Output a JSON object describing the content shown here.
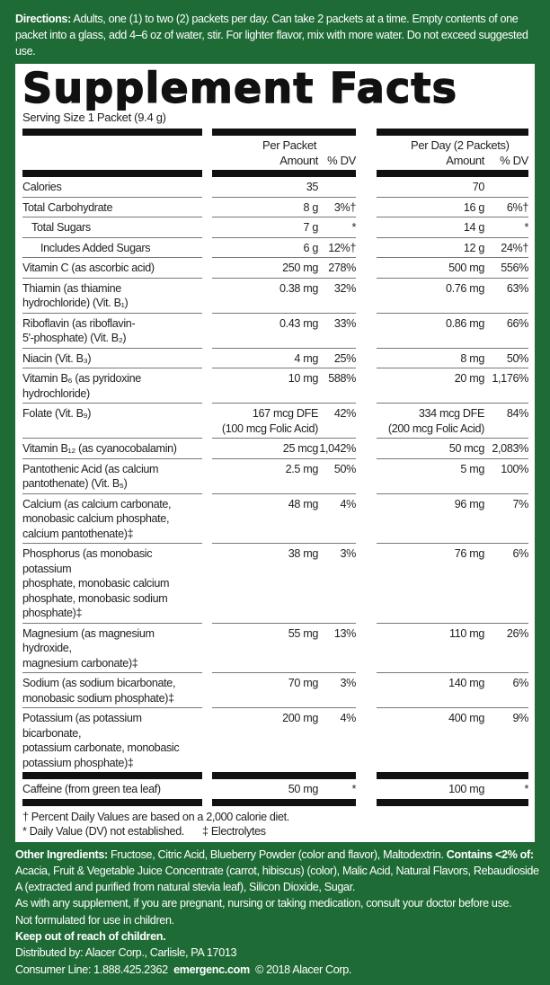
{
  "directions": {
    "label": "Directions:",
    "text": " Adults, one (1) to two (2) packets per day. Can take 2 packets at a time. Empty contents of one packet into a glass, add 4–6 oz of water, stir. For lighter flavor, mix with more water. Do not exceed suggested use."
  },
  "title": "Supplement Facts",
  "serving_size": "Serving Size 1 Packet (9.4 g)",
  "headers": {
    "per_packet": "Per Packet",
    "per_day": "Per Day (2 Packets)",
    "amount": "Amount",
    "dv": "% DV"
  },
  "rows": [
    {
      "name": "Calories",
      "a1": "35",
      "d1": "",
      "a2": "70",
      "d2": ""
    },
    {
      "name": "Total Carbohydrate",
      "a1": "8 g",
      "d1": "3%†",
      "a2": "16 g",
      "d2": "6%†"
    },
    {
      "name": "Total Sugars",
      "a1": "7 g",
      "d1": "*",
      "a2": "14 g",
      "d2": "*",
      "indent": 1
    },
    {
      "name": "Includes Added Sugars",
      "a1": "6 g",
      "d1": "12%†",
      "a2": "12 g",
      "d2": "24%†",
      "indent": 2
    },
    {
      "name": "Vitamin C (as ascorbic acid)",
      "a1": "250 mg",
      "d1": "278%",
      "a2": "500 mg",
      "d2": "556%"
    },
    {
      "name": "Thiamin (as thiamine\nhydrochloride) (Vit. B₁)",
      "a1": "0.38 mg",
      "d1": "32%",
      "a2": "0.76 mg",
      "d2": "63%"
    },
    {
      "name": "Riboflavin (as riboflavin-\n   5'-phosphate) (Vit. B₂)",
      "a1": "0.43 mg",
      "d1": "33%",
      "a2": "0.86 mg",
      "d2": "66%"
    },
    {
      "name": "Niacin (Vit. B₃)",
      "a1": "4 mg",
      "d1": "25%",
      "a2": "8 mg",
      "d2": "50%"
    },
    {
      "name": "Vitamin B₆ (as pyridoxine\nhydrochloride)",
      "a1": "10 mg",
      "d1": "588%",
      "a2": "20 mg",
      "d2": "1,176%"
    },
    {
      "name": "Folate (Vit. B₉)",
      "a1": "167 mcg DFE\n(100 mcg Folic Acid)",
      "d1": "42%",
      "a2": "334 mcg DFE\n(200 mcg Folic Acid)",
      "d2": "84%"
    },
    {
      "name": "Vitamin B₁₂ (as cyanocobalamin)",
      "a1": "25 mcg",
      "d1": "1,042%",
      "a2": "50 mcg",
      "d2": "2,083%"
    },
    {
      "name": "Pantothenic Acid (as calcium\npantothenate) (Vit. B₅)",
      "a1": "2.5 mg",
      "d1": "50%",
      "a2": "5 mg",
      "d2": "100%"
    },
    {
      "name": "Calcium (as calcium carbonate,\nmonobasic calcium  phosphate,\ncalcium pantothenate)‡",
      "a1": "48 mg",
      "d1": "4%",
      "a2": "96 mg",
      "d2": "7%"
    },
    {
      "name": "Phosphorus (as monobasic potassium\nphosphate, monobasic calcium\nphosphate, monobasic sodium\nphosphate)‡",
      "a1": "38 mg",
      "d1": "3%",
      "a2": "76 mg",
      "d2": "6%"
    },
    {
      "name": "Magnesium (as magnesium hydroxide,\nmagnesium carbonate)‡",
      "a1": "55 mg",
      "d1": "13%",
      "a2": "110 mg",
      "d2": "26%"
    },
    {
      "name": "Sodium (as sodium bicarbonate,\nmonobasic sodium phosphate)‡",
      "a1": "70 mg",
      "d1": "3%",
      "a2": "140 mg",
      "d2": "6%"
    },
    {
      "name": "Potassium (as potassium bicarbonate,\npotassium carbonate, monobasic\npotassium phosphate)‡",
      "a1": "200 mg",
      "d1": "4%",
      "a2": "400 mg",
      "d2": "9%"
    }
  ],
  "caffeine": {
    "name": "Caffeine (from green tea leaf)",
    "a1": "50 mg",
    "d1": "*",
    "a2": "100 mg",
    "d2": "*"
  },
  "footnotes": {
    "dagger": "† Percent Daily Values are based on a 2,000 calorie diet.",
    "star": "* Daily Value (DV) not established.",
    "electro": "‡ Electrolytes"
  },
  "bottom": {
    "other_label": "Other Ingredients:",
    "other_text": " Fructose, Citric Acid, Blueberry Powder (color and flavor), Maltodextrin. ",
    "contains_label": "Contains <2% of:",
    "contains_text": " Acacia, Fruit & Vegetable Juice Concentrate (carrot, hibiscus) (color), Malic Acid, Natural Flavors, Rebaudioside A (extracted and purified from natural stevia leaf), Silicon Dioxide, Sugar.",
    "warning": "As with any supplement, if you are pregnant, nursing or taking medication, consult your doctor before use.",
    "children": "Not formulated for use in children.",
    "keep_out": "Keep out of reach of children.",
    "distributed": "Distributed by: Alacer Corp., Carlisle, PA 17013",
    "consumer": "Consumer Line: 1.888.425.2362  ",
    "website": "emergenc.com",
    "copyright": "  © 2018 Alacer Corp."
  }
}
